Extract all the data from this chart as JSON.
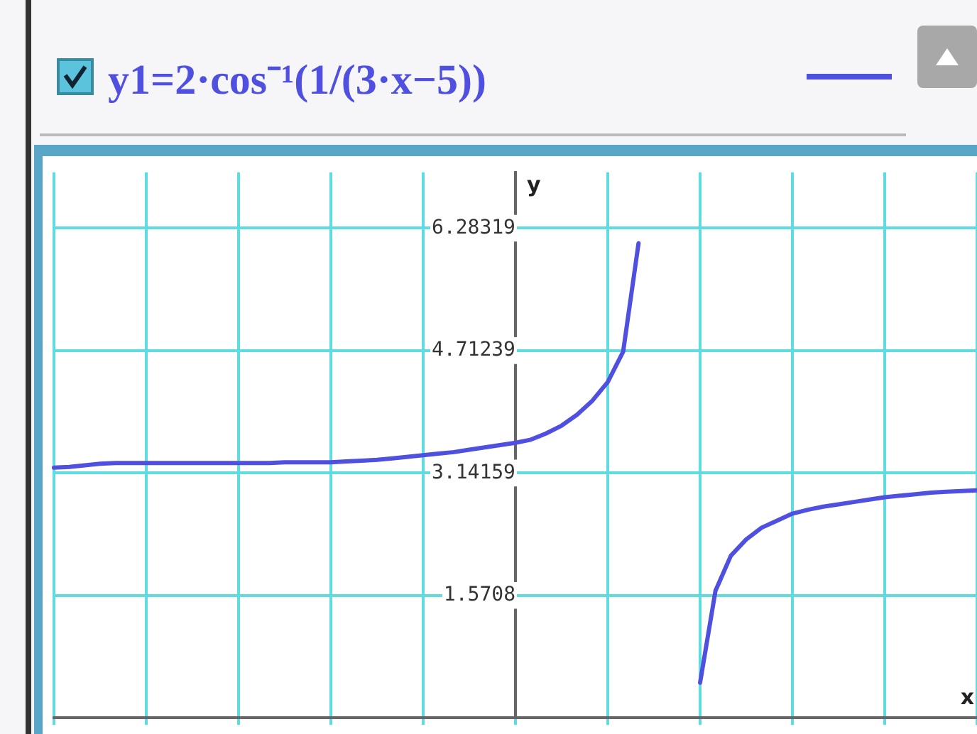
{
  "chart_data": {
    "type": "line",
    "ylabel": "y",
    "annotations": [
      "x"
    ],
    "categories": [
      null,
      null,
      null,
      null,
      null,
      null,
      null,
      null,
      null,
      null,
      null,
      null,
      null,
      null,
      null,
      null,
      null,
      null,
      null,
      null,
      null,
      null,
      null,
      null,
      null,
      null,
      null,
      null,
      null,
      null,
      null,
      null,
      null,
      null,
      null,
      null,
      null,
      null,
      null,
      null,
      null,
      null,
      null,
      null,
      null,
      null,
      null,
      null,
      null,
      null,
      null,
      null,
      null,
      null,
      null,
      null,
      null,
      null,
      null,
      null,
      null
    ],
    "series": [
      {
        "name": "y1=2·cos⁻¹(1/(3·x−5))",
        "color": "#5050e0",
        "values": [
          3.21,
          3.22,
          3.24,
          3.26,
          3.27,
          3.27,
          3.27,
          3.27,
          3.27,
          3.27,
          3.27,
          3.27,
          3.27,
          3.27,
          3.27,
          3.28,
          3.28,
          3.28,
          3.28,
          3.29,
          3.3,
          3.31,
          3.33,
          3.35,
          3.37,
          3.39,
          3.41,
          3.44,
          3.47,
          3.5,
          3.53,
          3.57,
          3.65,
          3.75,
          3.89,
          4.07,
          4.31,
          4.7,
          6.09,
          null,
          null,
          null,
          null,
          null,
          null,
          null,
          null,
          null,
          null,
          null,
          null,
          null,
          null,
          null,
          null,
          null,
          null,
          null,
          null,
          null,
          null
        ]
      },
      {
        "color": "#5050e0",
        "values": [
          null,
          null,
          null,
          null,
          null,
          null,
          null,
          null,
          null,
          null,
          null,
          null,
          null,
          null,
          null,
          null,
          null,
          null,
          null,
          null,
          null,
          null,
          null,
          null,
          null,
          null,
          null,
          null,
          null,
          null,
          null,
          null,
          null,
          null,
          null,
          null,
          null,
          null,
          null,
          null,
          null,
          null,
          0.45,
          1.63,
          2.08,
          2.29,
          2.44,
          2.53,
          2.62,
          2.67,
          2.71,
          2.74,
          2.77,
          2.8,
          2.83,
          2.85,
          2.87,
          2.89,
          2.9,
          2.91,
          2.92
        ]
      }
    ],
    "ylim": [
      0,
      7.0
    ],
    "yticks": [
      1.5708,
      3.14159,
      4.71239,
      6.28319
    ],
    "tick_labels": "y",
    "grid": true,
    "legend": "top",
    "marker": "none",
    "line_style": "solid"
  }
}
